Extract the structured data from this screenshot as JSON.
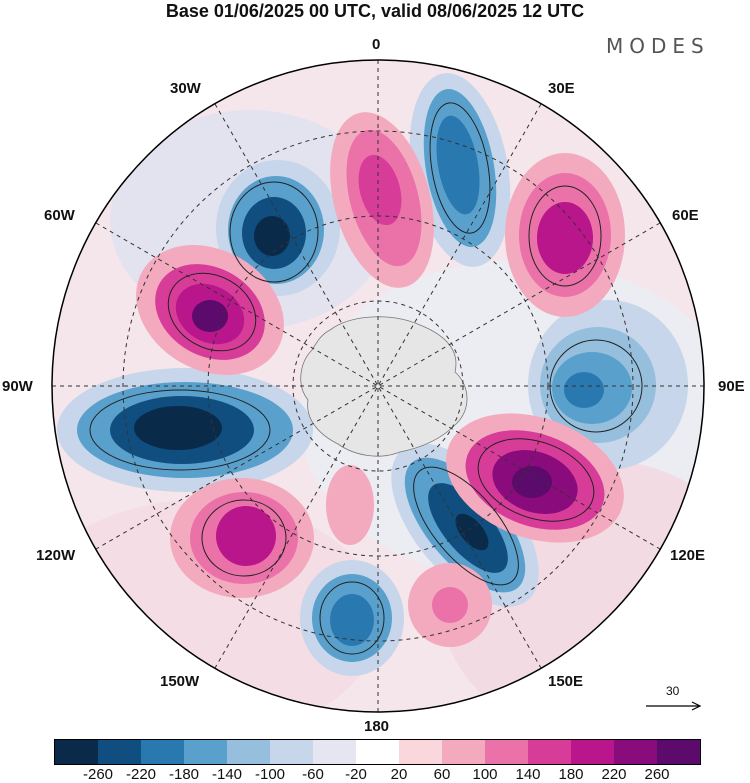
{
  "title": "Base 01/06/2025 00 UTC, valid 08/06/2025 12 UTC",
  "brand": "MODES",
  "longitude_labels": {
    "n0": "0",
    "e30": "30E",
    "e60": "60E",
    "e90": "90E",
    "e120": "120E",
    "e150": "150E",
    "s180": "180",
    "w150": "150W",
    "w120": "120W",
    "w90": "90W",
    "w60": "60W",
    "w30": "30W"
  },
  "reference_vector": {
    "value": "30"
  },
  "colorbar": {
    "colors": [
      "#0a2a4a",
      "#0f4e7e",
      "#2a78b0",
      "#5aa0cc",
      "#95bfdd",
      "#c7d6ea",
      "#e6e6f2",
      "#ffffff",
      "#f9d7dd",
      "#f3aabe",
      "#ea72a8",
      "#d73c98",
      "#b8168a",
      "#8a0c7c",
      "#5c0a6c"
    ],
    "tick_labels": [
      "-260",
      "-220",
      "-180",
      "-140",
      "-100",
      "-60",
      "-20",
      "20",
      "60",
      "100",
      "140",
      "180",
      "220",
      "260"
    ]
  },
  "map": {
    "land_color": "#e6e6e6",
    "anomaly_centers": [
      {
        "sign": "negative",
        "level": "-260"
      },
      {
        "sign": "negative",
        "level": "-180"
      },
      {
        "sign": "negative",
        "level": "-260"
      },
      {
        "sign": "negative",
        "level": "-220"
      },
      {
        "sign": "negative",
        "level": "-140"
      },
      {
        "sign": "negative",
        "level": "-180"
      },
      {
        "sign": "positive",
        "level": "220"
      },
      {
        "sign": "positive",
        "level": "180"
      },
      {
        "sign": "positive",
        "level": "220"
      },
      {
        "sign": "positive",
        "level": "220"
      },
      {
        "sign": "positive",
        "level": "180"
      },
      {
        "sign": "positive",
        "level": "180"
      }
    ]
  }
}
